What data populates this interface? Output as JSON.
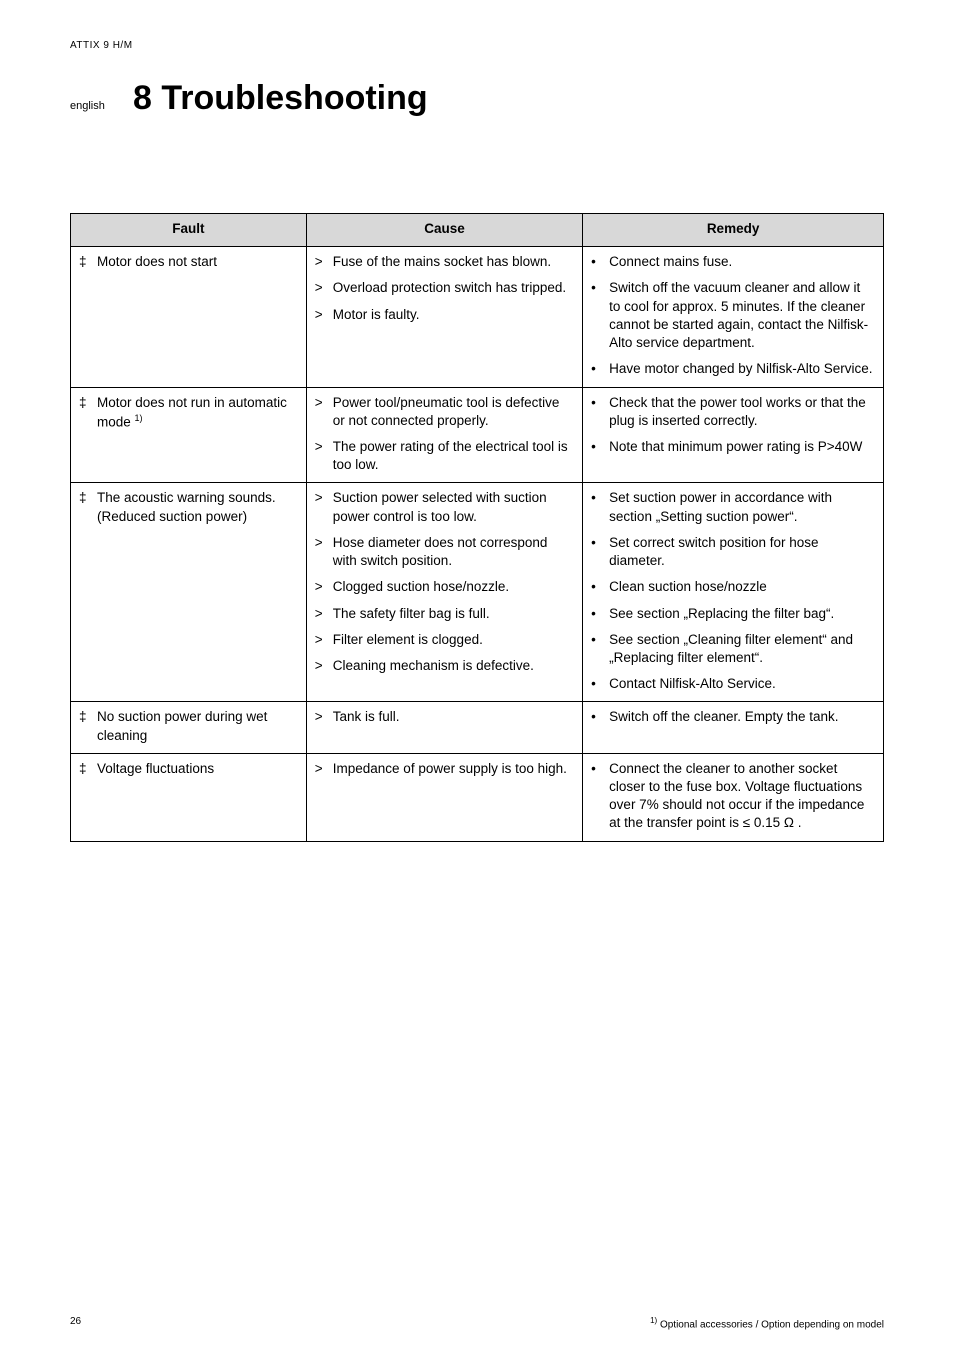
{
  "header": {
    "product": "ATTIX 9 H/M"
  },
  "side": {
    "lang": "english"
  },
  "title": {
    "number": "8",
    "text": "Troubleshooting",
    "full": "8  Troubleshooting"
  },
  "table": {
    "headers": {
      "fault": "Fault",
      "cause": "Cause",
      "remedy": "Remedy"
    },
    "rows": [
      {
        "fault": [
          {
            "marker": "‡",
            "text": "Motor does not start"
          }
        ],
        "cause": [
          {
            "marker": ">",
            "text": "Fuse of the mains socket has blown."
          },
          {
            "marker": ">",
            "text": "Overload protection switch has tripped."
          },
          {
            "marker": ">",
            "text": "Motor is faulty."
          }
        ],
        "remedy": [
          {
            "marker": "•",
            "text": "Connect mains fuse."
          },
          {
            "marker": "•",
            "text": "Switch off the vacuum cleaner and allow it to cool for approx. 5 minutes. If the cleaner cannot be started again, contact the Nilfisk-Alto service department."
          },
          {
            "marker": "•",
            "text": "Have motor changed by Nilfisk-Alto Service."
          }
        ]
      },
      {
        "fault": [
          {
            "marker": "‡",
            "text": "Motor does not run in automatic mode ",
            "sup": "1)"
          }
        ],
        "cause": [
          {
            "marker": ">",
            "text": "Power tool/pneumatic tool is defective or not connected properly."
          },
          {
            "marker": ">",
            "text": "The power rating of the electrical tool is too low."
          }
        ],
        "remedy": [
          {
            "marker": "•",
            "text": "Check that the power tool works or that the plug is inserted correctly."
          },
          {
            "marker": "•",
            "text": "Note that minimum power rating is P>40W"
          }
        ]
      },
      {
        "fault": [
          {
            "marker": "‡",
            "text": "The acoustic warning sounds. (Reduced suction power)"
          }
        ],
        "cause": [
          {
            "marker": ">",
            "text": "Suction power selected with suction power control is too low."
          },
          {
            "marker": ">",
            "text": "Hose diameter does not correspond with switch position."
          },
          {
            "marker": ">",
            "text": "Clogged suction hose/nozzle."
          },
          {
            "marker": ">",
            "text": "The safety filter bag is full."
          },
          {
            "marker": ">",
            "text": "Filter element is clogged."
          },
          {
            "marker": ">",
            "text": "Cleaning mechanism is defective."
          }
        ],
        "remedy": [
          {
            "marker": "•",
            "text": "Set suction power in accordance with section „Setting suction power“."
          },
          {
            "marker": "•",
            "text": "Set correct switch position for hose diameter."
          },
          {
            "marker": "•",
            "text": "Clean suction hose/nozzle"
          },
          {
            "marker": "•",
            "text": "See section „Replacing the filter bag“."
          },
          {
            "marker": "•",
            "text": "See section „Cleaning filter element“ and „Replacing filter element“."
          },
          {
            "marker": "•",
            "text": "Contact Nilfisk-Alto Service."
          }
        ]
      },
      {
        "fault": [
          {
            "marker": "‡",
            "text": "No suction power during wet cleaning"
          }
        ],
        "cause": [
          {
            "marker": ">",
            "text": "Tank is full."
          }
        ],
        "remedy": [
          {
            "marker": "•",
            "text": "Switch off the cleaner. Empty the tank."
          }
        ]
      },
      {
        "fault": [
          {
            "marker": "‡",
            "text": "Voltage fluctuations"
          }
        ],
        "cause": [
          {
            "marker": ">",
            "text": "Impedance of power supply is too high."
          }
        ],
        "remedy": [
          {
            "marker": "•",
            "text": "Connect the cleaner to another socket closer to the fuse box. Voltage fluctuations over 7% should not occur if the impedance at the transfer point is ≤ 0.15 Ω ."
          }
        ]
      }
    ]
  },
  "footer": {
    "page": "26",
    "note_sup": "1)",
    "note": " Optional accessories / Option depending on model"
  },
  "colors": {
    "header_bg": "#d8d8d8",
    "border": "#000000",
    "text": "#000000",
    "page_bg": "#ffffff"
  }
}
